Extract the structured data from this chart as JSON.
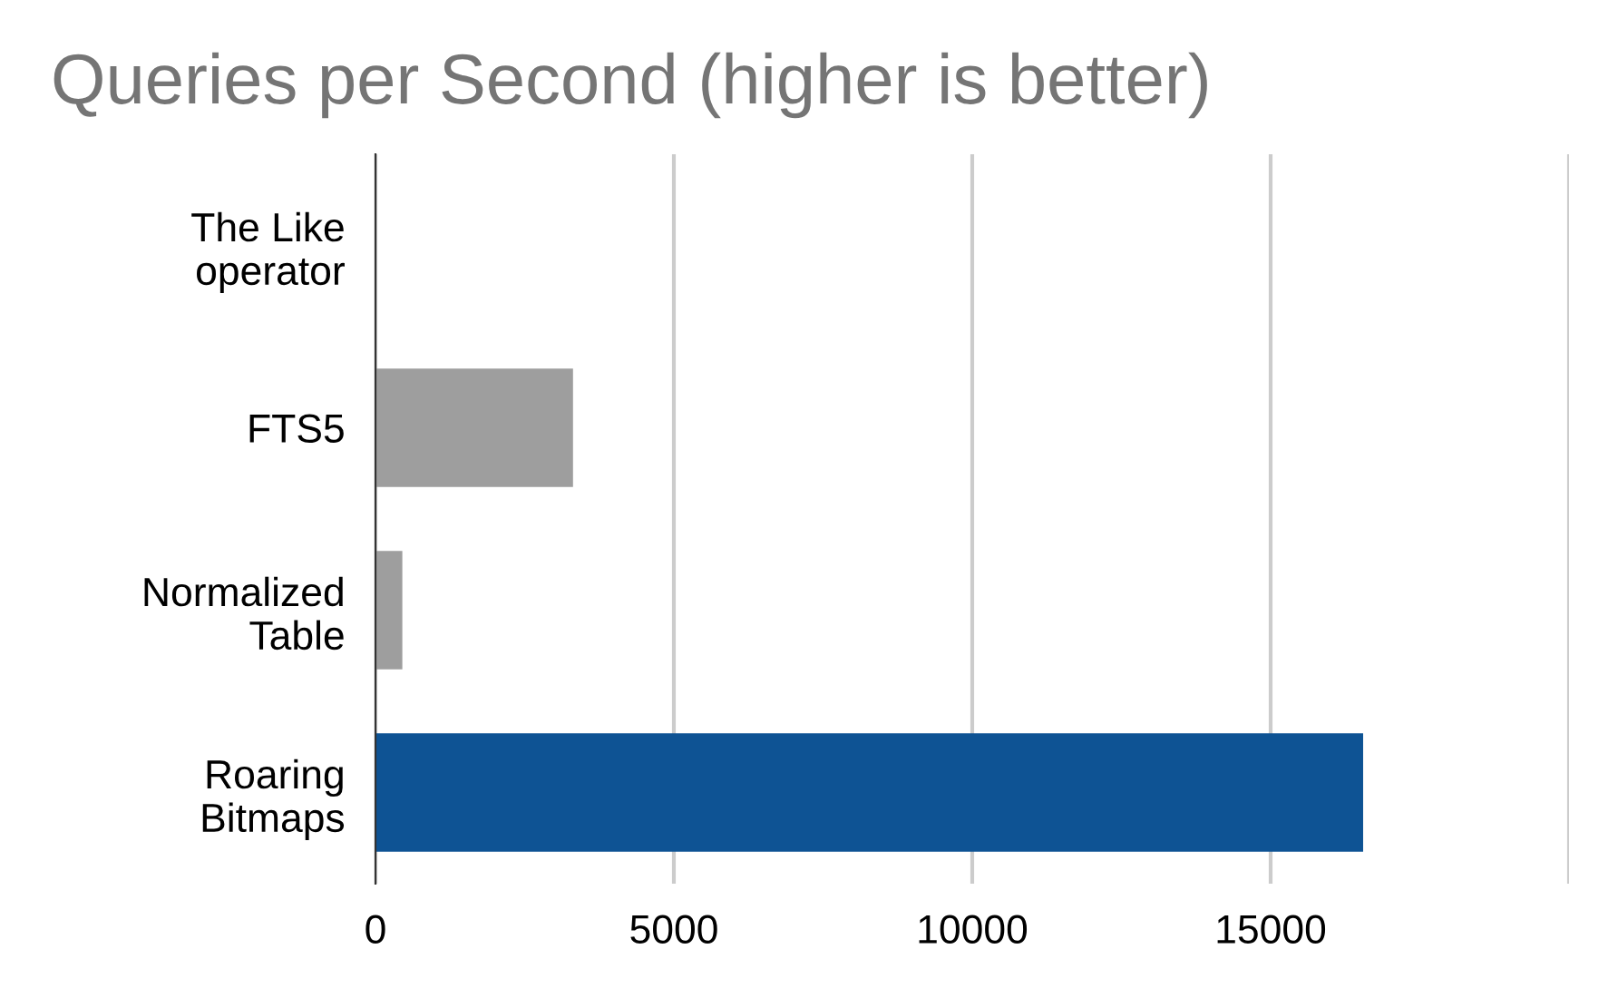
{
  "chart_data": {
    "type": "bar",
    "orientation": "horizontal",
    "title": "Queries per Second (higher is better)",
    "categories": [
      "The Like\noperator",
      "FTS5",
      "Normalized\nTable",
      "Roaring\nBitmaps"
    ],
    "values": [
      10,
      3310,
      450,
      16550
    ],
    "colors": [
      "#9e9e9e",
      "#9e9e9e",
      "#9e9e9e",
      "#0e5394"
    ],
    "xlim": [
      0,
      20000
    ],
    "xticks": [
      0,
      5000,
      10000,
      15000,
      {
        "value": 20000,
        "label": null
      }
    ],
    "grid": "x"
  }
}
